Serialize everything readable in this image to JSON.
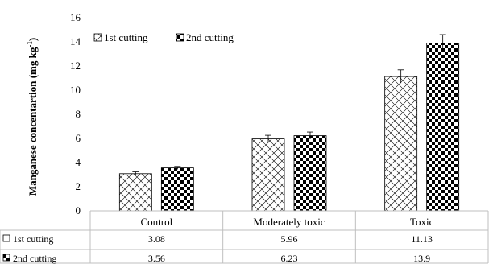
{
  "chart_data": {
    "type": "bar",
    "title": "",
    "xlabel": "",
    "ylabel": "Manganese concentartion  (mg kg",
    "ylabel_sup": "-1",
    "ylabel_close": ")",
    "ylim": [
      0,
      16
    ],
    "yticks": [
      "0",
      "2",
      "4",
      "6",
      "8",
      "10",
      "12",
      "14",
      "16"
    ],
    "categories": [
      "Control",
      "Moderately toxic",
      "Toxic"
    ],
    "legend_position": "top-left",
    "grid": false,
    "error_bars": true,
    "series": [
      {
        "name": "1st cutting",
        "values": [
          3.08,
          5.96,
          11.13
        ],
        "errors": [
          0.15,
          0.3,
          0.55
        ],
        "pattern": "diagonal-crosshatch"
      },
      {
        "name": "2nd cutting",
        "values": [
          3.56,
          6.23,
          13.9
        ],
        "errors": [
          0.12,
          0.3,
          0.7
        ],
        "pattern": "checkerboard"
      }
    ],
    "table": {
      "rows": [
        {
          "label": "1st cutting",
          "cells": [
            "3.08",
            "5.96",
            "11.13"
          ]
        },
        {
          "label": "2nd cutting",
          "cells": [
            "3.56",
            "6.23",
            "13.9"
          ]
        }
      ]
    }
  }
}
